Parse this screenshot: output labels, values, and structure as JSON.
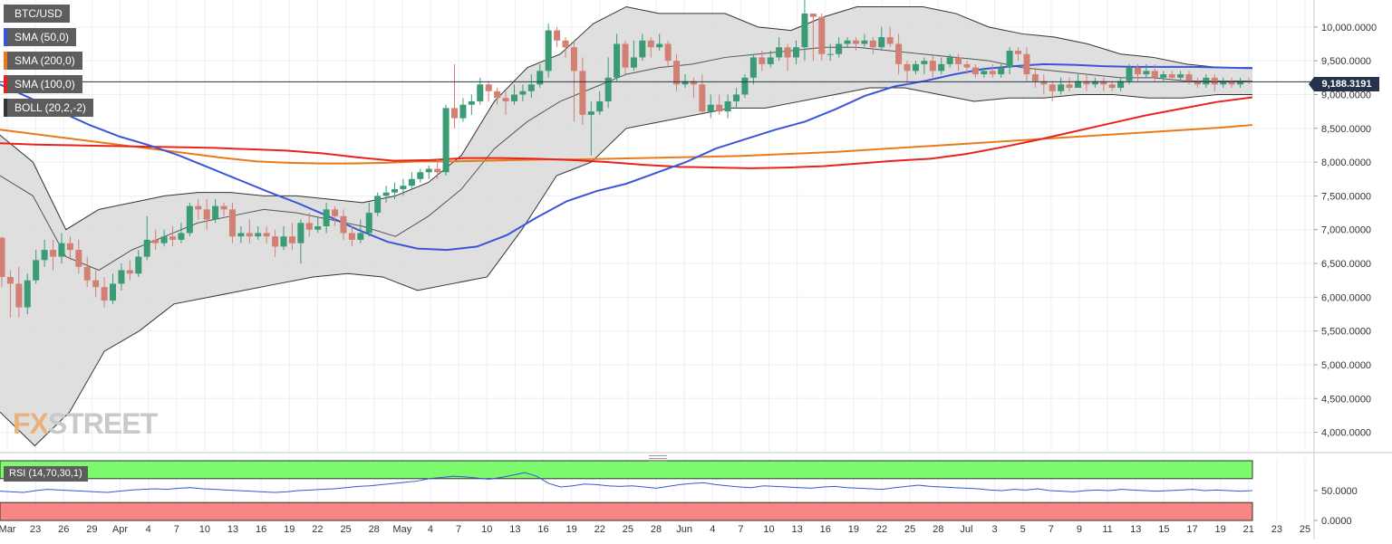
{
  "chart_data": [
    {
      "type": "candlestick",
      "symbol": "BTC/USD",
      "y_axis_side": "right",
      "ylim": [
        3700,
        10400
      ],
      "y_ticks": [
        "10,000.0000",
        "9,500.0000",
        "9,000.0000",
        "8,500.0000",
        "8,000.0000",
        "7,500.0000",
        "7,000.0000",
        "6,500.0000",
        "6,000.0000",
        "5,500.0000",
        "5,000.0000",
        "4,500.0000",
        "4,000.0000"
      ],
      "y_tick_values": [
        10000,
        9500,
        9000,
        8500,
        8000,
        7500,
        7000,
        6500,
        6000,
        5500,
        5000,
        4500,
        4000
      ],
      "x_tick_labels": [
        "Mar",
        "23",
        "26",
        "29",
        "Apr",
        "4",
        "7",
        "10",
        "13",
        "16",
        "19",
        "22",
        "25",
        "28",
        "May",
        "4",
        "7",
        "10",
        "13",
        "16",
        "19",
        "22",
        "25",
        "28",
        "Jun",
        "4",
        "7",
        "10",
        "13",
        "16",
        "19",
        "22",
        "25",
        "28",
        "Jul",
        "3",
        "5",
        "7",
        "9",
        "11",
        "13",
        "15",
        "17",
        "19",
        "21",
        "23",
        "25"
      ],
      "last_price": "9,188.3191",
      "last_price_value": 9188.3191,
      "indicators": [
        {
          "name": "SMA (50,0)",
          "color": "#3a55d8"
        },
        {
          "name": "SMA (200,0)",
          "color": "#e87a1b"
        },
        {
          "name": "SMA (100,0)",
          "color": "#e8231d"
        },
        {
          "name": "BOLL (20,2,-2)",
          "color": "#333333"
        }
      ],
      "colors": {
        "up": "#3a9b74",
        "down": "#d27f74",
        "boll_fill": "#d9d9d9",
        "grid": "#eceef0",
        "bull_strong": "#1a7a55",
        "bear_strong": "#e83a2a"
      },
      "candles": [
        [
          6880,
          6300,
          6900,
          6150
        ],
        [
          6300,
          6200,
          6400,
          5700
        ],
        [
          6200,
          5850,
          6450,
          5700
        ],
        [
          5850,
          6250,
          6350,
          5750
        ],
        [
          6250,
          6550,
          6700,
          6200
        ],
        [
          6550,
          6700,
          6850,
          6450
        ],
        [
          6700,
          6600,
          6850,
          6400
        ],
        [
          6600,
          6800,
          6950,
          6500
        ],
        [
          6800,
          6700,
          6900,
          6550
        ],
        [
          6700,
          6450,
          6850,
          6350
        ],
        [
          6450,
          6250,
          6600,
          6150
        ],
        [
          6250,
          6150,
          6400,
          6000
        ],
        [
          6150,
          5950,
          6300,
          5850
        ],
        [
          5950,
          6200,
          6350,
          5900
        ],
        [
          6200,
          6400,
          6500,
          6100
        ],
        [
          6400,
          6350,
          6550,
          6250
        ],
        [
          6350,
          6600,
          6700,
          6300
        ],
        [
          6600,
          6850,
          7200,
          6550
        ],
        [
          6850,
          6800,
          7000,
          6700
        ],
        [
          6800,
          6900,
          7000,
          6750
        ],
        [
          6900,
          6850,
          7050,
          6750
        ],
        [
          6850,
          6950,
          7100,
          6800
        ],
        [
          6950,
          7350,
          7400,
          6900
        ],
        [
          7350,
          7300,
          7450,
          7150
        ],
        [
          7300,
          7150,
          7450,
          7000
        ],
        [
          7150,
          7350,
          7450,
          7100
        ],
        [
          7350,
          7300,
          7400,
          7200
        ],
        [
          7300,
          6900,
          7400,
          6800
        ],
        [
          6900,
          6950,
          7050,
          6800
        ],
        [
          6950,
          6900,
          7150,
          6800
        ],
        [
          6900,
          6950,
          7050,
          6850
        ],
        [
          6950,
          6900,
          7050,
          6800
        ],
        [
          6900,
          6750,
          7000,
          6600
        ],
        [
          6750,
          6900,
          7050,
          6700
        ],
        [
          6900,
          6800,
          7100,
          6700
        ],
        [
          6800,
          7100,
          7150,
          6500
        ],
        [
          7100,
          7000,
          7250,
          6900
        ],
        [
          7000,
          7050,
          7200,
          6950
        ],
        [
          7050,
          7300,
          7400,
          6950
        ],
        [
          7300,
          7200,
          7350,
          7050
        ],
        [
          7200,
          6950,
          7300,
          6850
        ],
        [
          6950,
          6850,
          7050,
          6750
        ],
        [
          6850,
          6950,
          7150,
          6800
        ],
        [
          6950,
          7250,
          7400,
          6900
        ],
        [
          7250,
          7500,
          7550,
          7200
        ],
        [
          7500,
          7550,
          7650,
          7400
        ],
        [
          7550,
          7600,
          7700,
          7450
        ],
        [
          7600,
          7650,
          7750,
          7500
        ],
        [
          7650,
          7750,
          7850,
          7600
        ],
        [
          7750,
          7850,
          7900,
          7700
        ],
        [
          7850,
          7900,
          7950,
          7750
        ],
        [
          7900,
          7850,
          8050,
          7750
        ],
        [
          7850,
          8800,
          8850,
          7800
        ],
        [
          8800,
          8650,
          9450,
          8500
        ],
        [
          8650,
          8850,
          8950,
          8600
        ],
        [
          8850,
          8900,
          9000,
          8700
        ],
        [
          8900,
          9150,
          9250,
          8850
        ],
        [
          9150,
          9050,
          9200,
          8900
        ],
        [
          9050,
          8950,
          9100,
          8850
        ],
        [
          8950,
          8900,
          9050,
          8700
        ],
        [
          8900,
          9000,
          9150,
          8850
        ],
        [
          9000,
          9050,
          9150,
          8900
        ],
        [
          9050,
          9150,
          9300,
          8950
        ],
        [
          9150,
          9350,
          9450,
          9100
        ],
        [
          9350,
          9950,
          10050,
          9250
        ],
        [
          9950,
          9800,
          10000,
          9700
        ],
        [
          9800,
          9700,
          9850,
          9550
        ],
        [
          9700,
          9350,
          9800,
          8600
        ],
        [
          9350,
          8700,
          9550,
          8550
        ],
        [
          8700,
          8750,
          8900,
          8100
        ],
        [
          8750,
          8900,
          9050,
          8700
        ],
        [
          8900,
          9250,
          9550,
          8800
        ],
        [
          9250,
          9750,
          9900,
          9200
        ],
        [
          9750,
          9400,
          9800,
          9300
        ],
        [
          9400,
          9550,
          9800,
          9350
        ],
        [
          9550,
          9800,
          9900,
          9500
        ],
        [
          9800,
          9700,
          9850,
          9550
        ],
        [
          9700,
          9750,
          9900,
          9650
        ],
        [
          9750,
          9500,
          9800,
          9400
        ],
        [
          9500,
          9150,
          9600,
          9050
        ],
        [
          9150,
          9200,
          9300,
          9100
        ],
        [
          9200,
          9150,
          9250,
          8950
        ],
        [
          9150,
          8750,
          9300,
          8700
        ],
        [
          8750,
          8850,
          9000,
          8650
        ],
        [
          8850,
          8750,
          9000,
          8700
        ],
        [
          8750,
          8900,
          9000,
          8650
        ],
        [
          8900,
          9000,
          9100,
          8800
        ],
        [
          9000,
          9250,
          9300,
          8950
        ],
        [
          9250,
          9550,
          9600,
          9150
        ],
        [
          9550,
          9450,
          9650,
          9350
        ],
        [
          9450,
          9550,
          9650,
          9400
        ],
        [
          9550,
          9700,
          9850,
          9500
        ],
        [
          9700,
          9550,
          9750,
          9350
        ],
        [
          9550,
          9700,
          9800,
          9450
        ],
        [
          9700,
          10200,
          10400,
          9500
        ],
        [
          10200,
          10150,
          10200,
          9500
        ],
        [
          10150,
          9600,
          10200,
          9500
        ],
        [
          9600,
          9600,
          9750,
          9500
        ],
        [
          9600,
          9750,
          9850,
          9550
        ],
        [
          9750,
          9800,
          9850,
          9700
        ],
        [
          9800,
          9750,
          9850,
          9650
        ],
        [
          9750,
          9800,
          9900,
          9700
        ],
        [
          9800,
          9700,
          9850,
          9600
        ],
        [
          9700,
          9850,
          10000,
          9650
        ],
        [
          9850,
          9750,
          10000,
          9700
        ],
        [
          9750,
          9450,
          9900,
          9300
        ],
        [
          9450,
          9350,
          9500,
          9150
        ],
        [
          9350,
          9450,
          9500,
          9300
        ],
        [
          9450,
          9500,
          9550,
          9300
        ],
        [
          9500,
          9350,
          9600,
          9250
        ],
        [
          9350,
          9450,
          9550,
          9300
        ],
        [
          9450,
          9550,
          9600,
          9400
        ],
        [
          9550,
          9450,
          9600,
          9350
        ],
        [
          9450,
          9400,
          9500,
          9300
        ],
        [
          9400,
          9300,
          9450,
          9250
        ],
        [
          9300,
          9350,
          9400,
          9250
        ],
        [
          9350,
          9300,
          9450,
          9250
        ],
        [
          9300,
          9400,
          9450,
          9250
        ],
        [
          9400,
          9650,
          9700,
          9300
        ],
        [
          9650,
          9600,
          9700,
          9500
        ],
        [
          9600,
          9300,
          9700,
          9200
        ],
        [
          9300,
          9200,
          9400,
          9100
        ],
        [
          9200,
          9150,
          9300,
          9000
        ],
        [
          9150,
          9050,
          9200,
          8900
        ],
        [
          9050,
          9150,
          9250,
          9000
        ],
        [
          9150,
          9100,
          9250,
          9050
        ],
        [
          9100,
          9200,
          9300,
          9100
        ],
        [
          9200,
          9150,
          9300,
          9050
        ],
        [
          9150,
          9200,
          9250,
          9100
        ],
        [
          9200,
          9150,
          9250,
          9050
        ],
        [
          9150,
          9100,
          9200,
          9050
        ],
        [
          9100,
          9200,
          9250,
          9050
        ],
        [
          9200,
          9400,
          9450,
          9150
        ],
        [
          9400,
          9300,
          9450,
          9200
        ],
        [
          9300,
          9350,
          9450,
          9250
        ],
        [
          9350,
          9250,
          9450,
          9200
        ],
        [
          9250,
          9300,
          9350,
          9200
        ],
        [
          9300,
          9250,
          9350,
          9200
        ],
        [
          9250,
          9300,
          9350,
          9200
        ],
        [
          9300,
          9200,
          9350,
          9150
        ],
        [
          9200,
          9150,
          9250,
          9100
        ],
        [
          9150,
          9250,
          9300,
          9100
        ],
        [
          9250,
          9150,
          9300,
          9050
        ],
        [
          9150,
          9200,
          9250,
          9100
        ],
        [
          9200,
          9150,
          9250,
          9100
        ],
        [
          9150,
          9200,
          9250,
          9100
        ],
        [
          9200,
          9188,
          9250,
          9150
        ]
      ],
      "sma50": [
        9150,
        8950,
        8750,
        8550,
        8380,
        8250,
        8100,
        7920,
        7740,
        7560,
        7390,
        7200,
        7000,
        6820,
        6720,
        6700,
        6750,
        6920,
        7180,
        7420,
        7570,
        7680,
        7840,
        8000,
        8200,
        8340,
        8480,
        8600,
        8780,
        8980,
        9120,
        9200,
        9300,
        9380,
        9420,
        9450,
        9440,
        9420,
        9410,
        9410,
        9410,
        9400,
        9390
      ],
      "sma200": [
        8480,
        8420,
        8360,
        8300,
        8240,
        8180,
        8120,
        8060,
        8010,
        7990,
        7980,
        7980,
        7990,
        8010,
        8010,
        8020,
        8030,
        8040,
        8040,
        8050,
        8060,
        8070,
        8080,
        8090,
        8110,
        8130,
        8150,
        8180,
        8210,
        8240,
        8270,
        8300,
        8330,
        8360,
        8390,
        8420,
        8450,
        8480,
        8510,
        8550
      ],
      "sma100": [
        8280,
        8260,
        8250,
        8240,
        8230,
        8220,
        8210,
        8190,
        8170,
        8130,
        8070,
        8020,
        8030,
        8060,
        8060,
        8050,
        8030,
        8000,
        7960,
        7930,
        7920,
        7910,
        7920,
        7940,
        7980,
        8020,
        8050,
        8120,
        8220,
        8330,
        8450,
        8570,
        8690,
        8790,
        8890,
        8960
      ],
      "boll_upper": [
        8400,
        8000,
        7000,
        7300,
        7400,
        7500,
        7550,
        7550,
        7500,
        7500,
        7450,
        7400,
        7500,
        7700,
        8100,
        8900,
        9400,
        9600,
        10050,
        10300,
        10200,
        10200,
        10200,
        10000,
        9950,
        10150,
        10300,
        10300,
        10300,
        10200,
        10000,
        9900,
        9850,
        9750,
        9600,
        9550,
        9450,
        9400,
        9400
      ],
      "boll_middle": [
        7800,
        7500,
        6600,
        6400,
        6700,
        6900,
        7100,
        7200,
        7300,
        7250,
        7150,
        7050,
        6900,
        7200,
        7600,
        8200,
        8600,
        8900,
        9100,
        9300,
        9400,
        9450,
        9550,
        9600,
        9650,
        9700,
        9700,
        9650,
        9600,
        9550,
        9500,
        9400,
        9350,
        9300,
        9250,
        9250,
        9200,
        9200,
        9200
      ],
      "boll_lower": [
        4300,
        3800,
        4300,
        5200,
        5500,
        5900,
        6000,
        6100,
        6200,
        6300,
        6350,
        6300,
        6100,
        6200,
        6300,
        7000,
        7800,
        8000,
        8500,
        8600,
        8700,
        8800,
        8800,
        8900,
        9000,
        9100,
        9100,
        9000,
        8900,
        8950,
        8950,
        9000,
        9000,
        8950,
        8950,
        9000,
        9000
      ],
      "watermark": "FXSTREET"
    },
    {
      "type": "line",
      "label": "RSI (14,70,30,1)",
      "ylim": [
        0,
        100
      ],
      "y_ticks": [
        "50.0000",
        "0.0000"
      ],
      "y_tick_values": [
        50,
        0
      ],
      "overbought": 70,
      "oversold": 30,
      "values": [
        49,
        48,
        47,
        50,
        52,
        51,
        50,
        49,
        48,
        47,
        49,
        51,
        52,
        53,
        52,
        54,
        55,
        53,
        52,
        51,
        50,
        49,
        48,
        47,
        48,
        50,
        51,
        52,
        53,
        55,
        57,
        58,
        60,
        62,
        64,
        66,
        70,
        72,
        74,
        73,
        71,
        69,
        72,
        76,
        80,
        74,
        62,
        56,
        58,
        61,
        60,
        58,
        57,
        58,
        56,
        54,
        57,
        60,
        62,
        63,
        60,
        58,
        56,
        55,
        58,
        57,
        56,
        55,
        54,
        56,
        57,
        55,
        54,
        53,
        52,
        55,
        57,
        59,
        57,
        56,
        55,
        54,
        53,
        51,
        50,
        52,
        51,
        53,
        50,
        49,
        48,
        50,
        51,
        50,
        52,
        51,
        50,
        49,
        50,
        51,
        52,
        50,
        51,
        50,
        49,
        50
      ]
    }
  ]
}
